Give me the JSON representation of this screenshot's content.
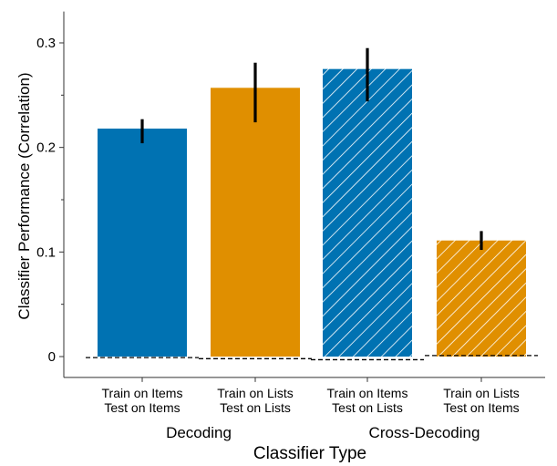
{
  "chart_data": {
    "type": "bar",
    "xlabel": "Classifier Type",
    "ylabel": "Classifier Performance (Correlation)",
    "ylim": [
      -0.02,
      0.33
    ],
    "yticks": [
      0,
      0.1,
      0.2,
      0.3
    ],
    "ytick_labels": [
      "0",
      "0.1",
      "0.2",
      "0.3"
    ],
    "grid": false,
    "categories": [
      {
        "line1": "Train on Items",
        "line2": "Test on Items"
      },
      {
        "line1": "Train on Lists",
        "line2": "Test on Lists"
      },
      {
        "line1": "Train on Items",
        "line2": "Test on Lists"
      },
      {
        "line1": "Train on Lists",
        "line2": "Test on Items"
      }
    ],
    "values": [
      0.218,
      0.257,
      0.275,
      0.111
    ],
    "error_low": [
      0.204,
      0.224,
      0.244,
      0.102
    ],
    "error_high": [
      0.227,
      0.281,
      0.295,
      0.12
    ],
    "null_baseline": [
      -0.001,
      -0.002,
      -0.003,
      0.001
    ],
    "colors": [
      "#0072b2",
      "#e08f00",
      "#0072b2",
      "#e08f00"
    ],
    "hatched": [
      false,
      false,
      true,
      true
    ],
    "groups": [
      {
        "label": "Decoding",
        "start": 0,
        "end": 1
      },
      {
        "label": "Cross-Decoding",
        "start": 2,
        "end": 3
      }
    ]
  }
}
